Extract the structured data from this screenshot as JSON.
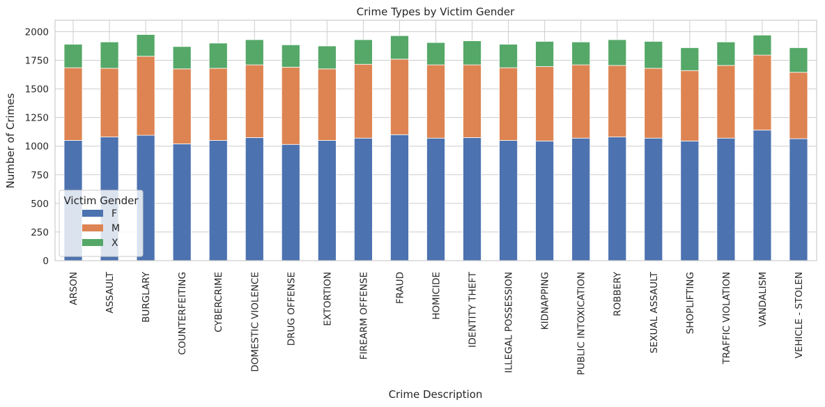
{
  "chart_data": {
    "type": "bar",
    "stacked": true,
    "title": "Crime Types by Victim Gender",
    "xlabel": "Crime Description",
    "ylabel": "Number of Crimes",
    "ylim": [
      0,
      2100
    ],
    "yticks": [
      0,
      250,
      500,
      750,
      1000,
      1250,
      1500,
      1750,
      2000
    ],
    "grid": true,
    "legend": {
      "title": "Victim Gender",
      "placement": "lower-left"
    },
    "categories": [
      "ARSON",
      "ASSAULT",
      "BURGLARY",
      "COUNTERFEITING",
      "CYBERCRIME",
      "DOMESTIC VIOLENCE",
      "DRUG OFFENSE",
      "EXTORTION",
      "FIREARM OFFENSE",
      "FRAUD",
      "HOMICIDE",
      "IDENTITY THEFT",
      "ILLEGAL POSSESSION",
      "KIDNAPPING",
      "PUBLIC INTOXICATION",
      "ROBBERY",
      "SEXUAL ASSAULT",
      "SHOPLIFTING",
      "TRAFFIC VIOLATION",
      "VANDALISM",
      "VEHICLE - STOLEN"
    ],
    "series": [
      {
        "name": "F",
        "color": "#4c72b0",
        "values": [
          1050,
          1080,
          1095,
          1020,
          1050,
          1075,
          1015,
          1050,
          1070,
          1100,
          1070,
          1075,
          1050,
          1045,
          1070,
          1080,
          1070,
          1045,
          1070,
          1140,
          1065
        ]
      },
      {
        "name": "M",
        "color": "#dd8452",
        "values": [
          635,
          600,
          690,
          655,
          630,
          635,
          675,
          625,
          645,
          660,
          640,
          635,
          635,
          650,
          640,
          625,
          610,
          615,
          635,
          655,
          580
        ]
      },
      {
        "name": "X",
        "color": "#55a868",
        "values": [
          205,
          230,
          190,
          195,
          220,
          220,
          195,
          200,
          215,
          205,
          195,
          210,
          205,
          220,
          200,
          225,
          235,
          200,
          205,
          175,
          215
        ]
      }
    ]
  }
}
